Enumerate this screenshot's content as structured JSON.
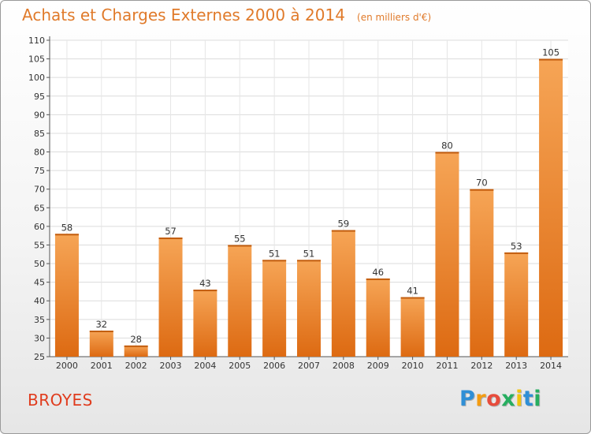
{
  "header": {
    "title": "Achats et Charges Externes 2000 à 2014",
    "subtitle": "(en milliers d'€)"
  },
  "footer": {
    "commune": "BROYES",
    "brand": "Proxiti",
    "brand_letters": [
      {
        "ch": "P",
        "color": "#2f8fd6"
      },
      {
        "ch": "r",
        "color": "#f39c12"
      },
      {
        "ch": "o",
        "color": "#e74c3c"
      },
      {
        "ch": "x",
        "color": "#27ae60"
      },
      {
        "ch": "i",
        "color": "#f1c40f"
      },
      {
        "ch": "t",
        "color": "#2f8fd6"
      },
      {
        "ch": "i",
        "color": "#27ae60"
      }
    ]
  },
  "chart_data": {
    "type": "bar",
    "title": "Achats et Charges Externes 2000 à 2014",
    "subtitle": "(en milliers d'€)",
    "categories": [
      "2000",
      "2001",
      "2002",
      "2003",
      "2004",
      "2005",
      "2006",
      "2007",
      "2008",
      "2009",
      "2010",
      "2011",
      "2012",
      "2013",
      "2014"
    ],
    "values": [
      58,
      32,
      28,
      57,
      43,
      55,
      51,
      51,
      59,
      46,
      41,
      80,
      70,
      53,
      105
    ],
    "ylim": [
      25,
      110
    ],
    "yticks": [
      25,
      30,
      35,
      40,
      45,
      50,
      55,
      60,
      65,
      70,
      75,
      80,
      85,
      90,
      95,
      100,
      105,
      110
    ],
    "grid": true,
    "bar_color": "#f08a2a"
  }
}
